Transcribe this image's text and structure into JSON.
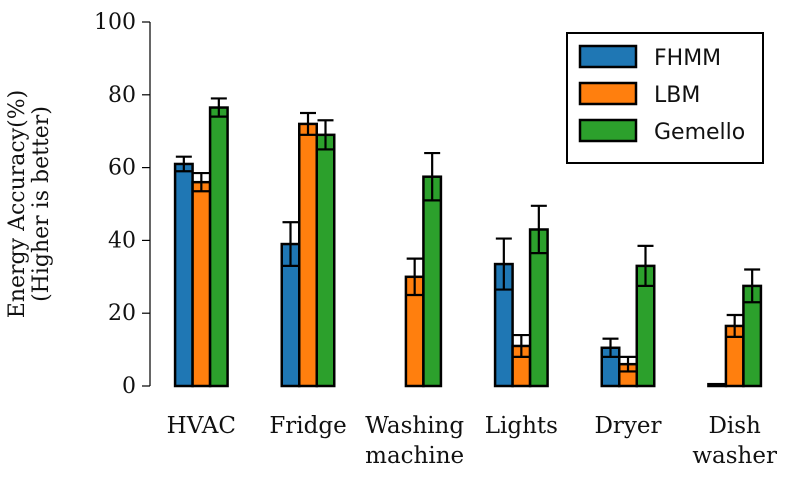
{
  "chart_data": {
    "type": "bar",
    "ylabel": [
      "Energy Accuracy(%)",
      "(Higher is better)"
    ],
    "xlabel": "",
    "ylim": [
      0,
      100
    ],
    "yticks": [
      0,
      20,
      40,
      60,
      80,
      100
    ],
    "grid": false,
    "legend_position": "top-right",
    "categories": [
      [
        "HVAC"
      ],
      [
        "Fridge"
      ],
      [
        "Washing",
        "machine"
      ],
      [
        "Lights"
      ],
      [
        "Dryer"
      ],
      [
        "Dish",
        "washer"
      ]
    ],
    "series": [
      {
        "name": "FHMM",
        "color": "#1f77b4",
        "values": [
          61,
          39,
          0,
          33.5,
          10.5,
          0.5
        ],
        "errors": [
          2,
          6,
          0,
          7,
          2.5,
          0
        ]
      },
      {
        "name": "LBM",
        "color": "#ff7f0e",
        "values": [
          56,
          72,
          30,
          11,
          6,
          16.5
        ],
        "errors": [
          2.5,
          3,
          5,
          3,
          2,
          3
        ]
      },
      {
        "name": "Gemello",
        "color": "#2ca02c",
        "values": [
          76.5,
          69,
          57.5,
          43,
          33,
          27.5
        ],
        "errors": [
          2.5,
          4,
          6.5,
          6.5,
          5.5,
          4.5
        ]
      }
    ]
  }
}
